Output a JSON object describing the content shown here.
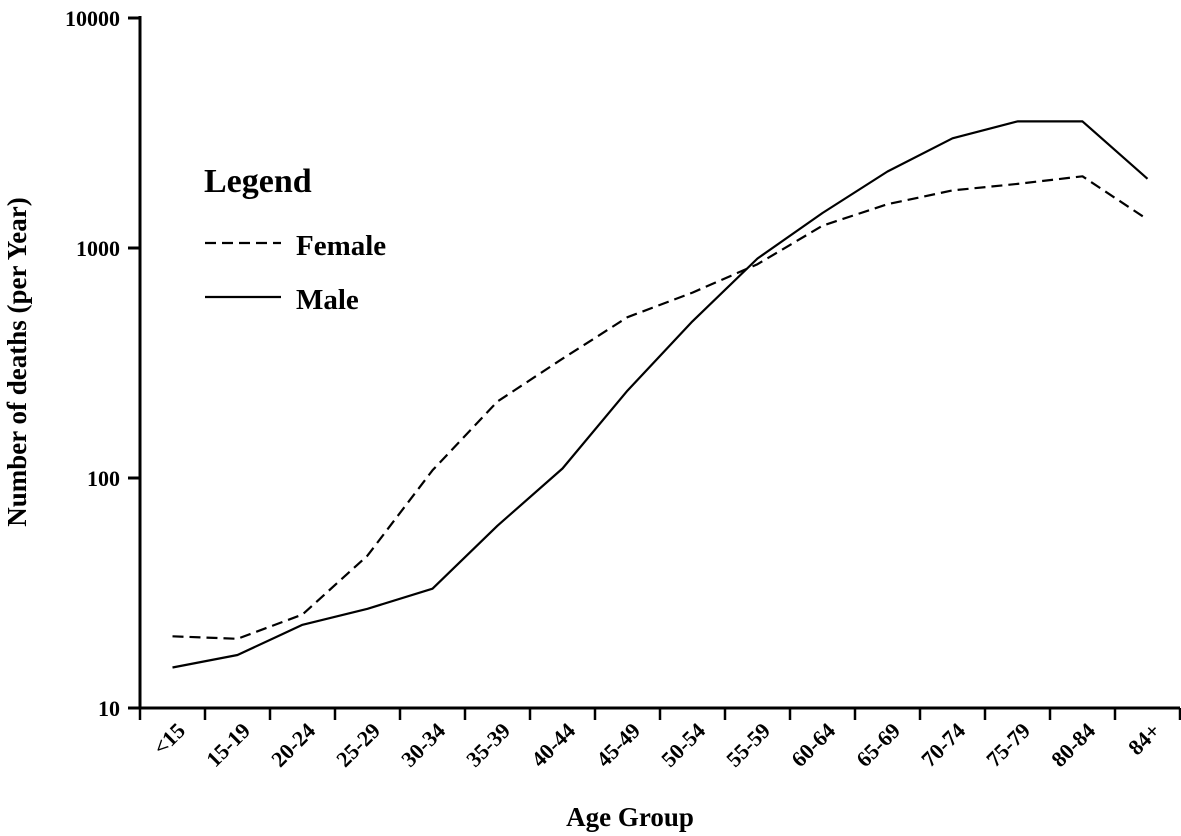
{
  "chart_data": {
    "type": "line",
    "title": "",
    "xlabel": "Age Group",
    "ylabel": "Number of deaths (per Year)",
    "yscale": "log",
    "ylim": [
      10,
      10000
    ],
    "yticks": [
      10,
      100,
      1000,
      10000
    ],
    "categories": [
      "<15",
      "15-19",
      "20-24",
      "25-29",
      "30-34",
      "35-39",
      "40-44",
      "45-49",
      "50-54",
      "55-59",
      "60-64",
      "65-69",
      "70-74",
      "75-79",
      "80-84",
      "84+"
    ],
    "legend": {
      "title": "Legend",
      "position": "upper-left"
    },
    "series": [
      {
        "name": "Female",
        "style": "dashed",
        "values": [
          20.5,
          20,
          25.5,
          46,
          108,
          215,
          330,
          500,
          640,
          850,
          1250,
          1550,
          1780,
          1900,
          2050,
          1330
        ]
      },
      {
        "name": "Male",
        "style": "solid",
        "values": [
          15,
          17,
          23,
          27,
          33,
          62,
          110,
          240,
          480,
          900,
          1420,
          2150,
          3000,
          3550,
          3550,
          2000
        ]
      }
    ],
    "grid": false,
    "colors": {
      "line": "#000000",
      "axis": "#000000"
    }
  }
}
